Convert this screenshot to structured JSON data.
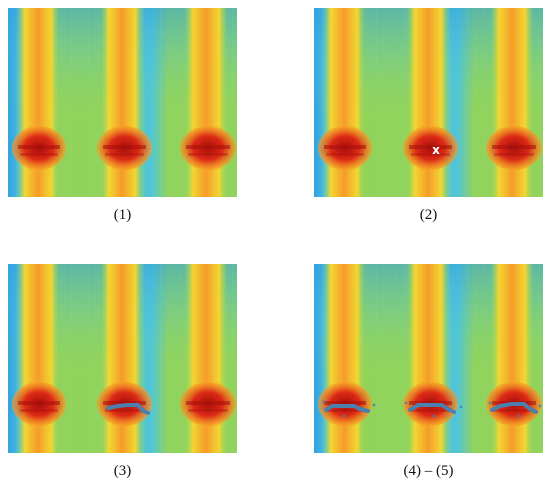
{
  "panels": [
    {
      "caption": "(1)",
      "overlay": "none"
    },
    {
      "caption": "(2)",
      "overlay": "seed",
      "marker_symbol": "x"
    },
    {
      "caption": "(3)",
      "overlay": "single-trace"
    },
    {
      "caption": "(4) – (5)",
      "overlay": "all-traces"
    }
  ],
  "colors": {
    "edge_blue": "#2f9fe0",
    "mid_cyan": "#49c3df",
    "green": "#8fd35a",
    "yellow": "#f2d62e",
    "orange": "#f59a25",
    "red": "#dc2a16",
    "dark_red": "#a60f0b",
    "trace": "#4a7fae",
    "marker": "#ffffff"
  }
}
